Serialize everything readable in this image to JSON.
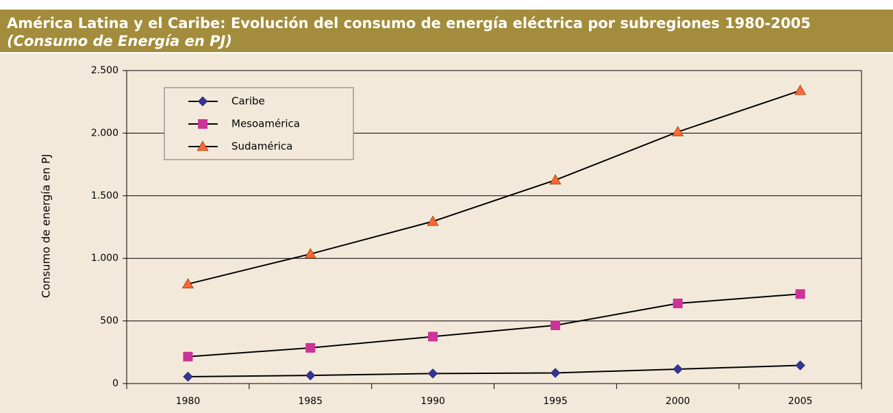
{
  "chart_data": {
    "type": "line",
    "title": "América Latina y el Caribe: Evolución del consumo de energía eléctrica por subregiones 1980-2005",
    "subtitle": "(Consumo de Energía en PJ)",
    "y_label": "Consumo de energía en PJ",
    "categories": [
      "1980",
      "1985",
      "1990",
      "1995",
      "2000",
      "2005"
    ],
    "series": [
      {
        "name": "Caribe",
        "color": "#333399",
        "marker": "diamond",
        "values": [
          55,
          65,
          80,
          85,
          115,
          145
        ]
      },
      {
        "name": "Mesoamérica",
        "color": "#cc3399",
        "marker": "square",
        "values": [
          215,
          285,
          375,
          465,
          640,
          715
        ]
      },
      {
        "name": "Sudamérica",
        "color": "#ff6633",
        "marker": "triangle",
        "values": [
          795,
          1035,
          1295,
          1625,
          2010,
          2340
        ]
      }
    ],
    "ylim": [
      0,
      2500
    ],
    "yticks": [
      0,
      500,
      {
        "value": 1000,
        "label": "1.000"
      },
      {
        "value": 1500,
        "label": "1.500"
      },
      {
        "value": 2000,
        "label": "2.000"
      },
      {
        "value": 2500,
        "label": "2.500"
      }
    ],
    "grid": true,
    "legend": "upper left"
  }
}
